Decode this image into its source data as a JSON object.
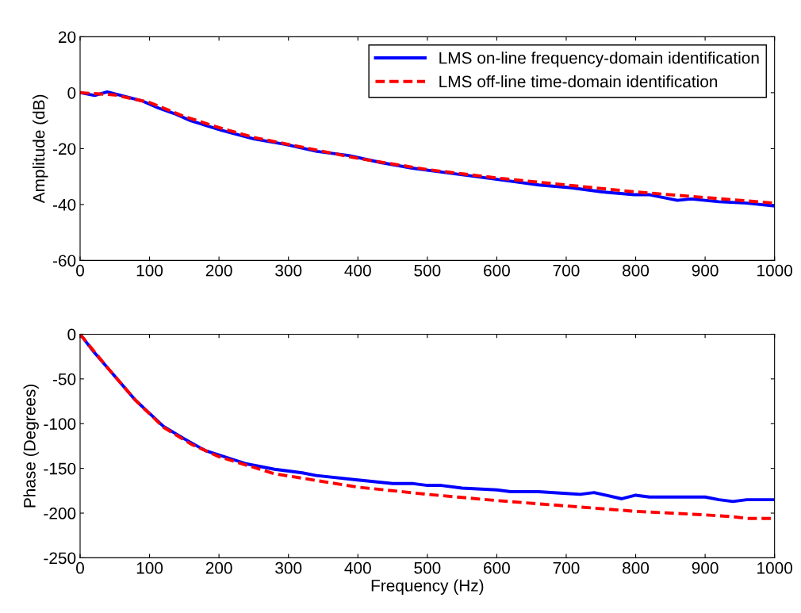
{
  "chart_data": [
    {
      "type": "line",
      "ylabel": "Amplitude (dB)",
      "xlim": [
        0,
        1000
      ],
      "xticks": [
        0,
        100,
        200,
        300,
        400,
        500,
        600,
        700,
        800,
        900,
        1000
      ],
      "ylim": [
        -60,
        20
      ],
      "yticks": [
        -60,
        -40,
        -20,
        0,
        20
      ],
      "grid": false,
      "legend": "top right",
      "series": [
        {
          "name": "LMS on-line frequency-domain identification",
          "color": "#0000ff",
          "line_style": "solid",
          "x": [
            0,
            21,
            39,
            90,
            113,
            136,
            159,
            204,
            250,
            296,
            341,
            387,
            433,
            478,
            524,
            570,
            615,
            661,
            707,
            752,
            798,
            820,
            860,
            880,
            920,
            960,
            1000
          ],
          "values": [
            0,
            -1,
            0.3,
            -3,
            -5.5,
            -7.5,
            -10,
            -13.5,
            -16.5,
            -18.5,
            -21,
            -22.5,
            -25,
            -27,
            -28.5,
            -30,
            -31.5,
            -33,
            -34,
            -35.5,
            -36.5,
            -36.5,
            -38.5,
            -38,
            -39,
            -39.5,
            -40.5
          ]
        },
        {
          "name": "LMS off-line time-domain identification",
          "color": "#ff0000",
          "line_style": "dashed",
          "x": [
            0,
            50,
            100,
            150,
            200,
            250,
            300,
            400,
            500,
            600,
            700,
            800,
            900,
            1000
          ],
          "values": [
            0,
            -0.8,
            -3.5,
            -8.5,
            -12.5,
            -16,
            -18.5,
            -23.5,
            -27.5,
            -30.5,
            -33,
            -35.5,
            -37.5,
            -39.5
          ]
        }
      ]
    },
    {
      "type": "line",
      "xlabel": "Frequency (Hz)",
      "ylabel": "Phase (Degrees)",
      "xlim": [
        0,
        1000
      ],
      "xticks": [
        0,
        100,
        200,
        300,
        400,
        500,
        600,
        700,
        800,
        900,
        1000
      ],
      "ylim": [
        -250,
        0
      ],
      "yticks": [
        -250,
        -200,
        -150,
        -100,
        -50,
        0
      ],
      "grid": false,
      "series": [
        {
          "color": "#0000ff",
          "line_style": "solid",
          "x": [
            0,
            20,
            40,
            80,
            120,
            150,
            180,
            240,
            280,
            320,
            340,
            400,
            450,
            480,
            500,
            520,
            550,
            600,
            620,
            660,
            700,
            720,
            740,
            780,
            800,
            820,
            900,
            920,
            940,
            960,
            1000
          ],
          "values": [
            0,
            -20,
            -38,
            -74,
            -103,
            -117,
            -130,
            -145,
            -151,
            -155,
            -158,
            -163,
            -167,
            -167,
            -169,
            -169,
            -172,
            -174,
            -176,
            -176,
            -178,
            -179,
            -177,
            -184,
            -180,
            -182,
            -182,
            -185,
            -187,
            -185,
            -185
          ]
        },
        {
          "color": "#ff0000",
          "line_style": "dashed",
          "x": [
            0,
            40,
            80,
            120,
            160,
            200,
            280,
            400,
            500,
            600,
            700,
            800,
            900,
            940,
            960,
            1000
          ],
          "values": [
            0,
            -38,
            -74,
            -104,
            -123,
            -137,
            -156,
            -171,
            -179,
            -186,
            -192,
            -198,
            -202,
            -204,
            -206,
            -206
          ]
        }
      ]
    }
  ]
}
